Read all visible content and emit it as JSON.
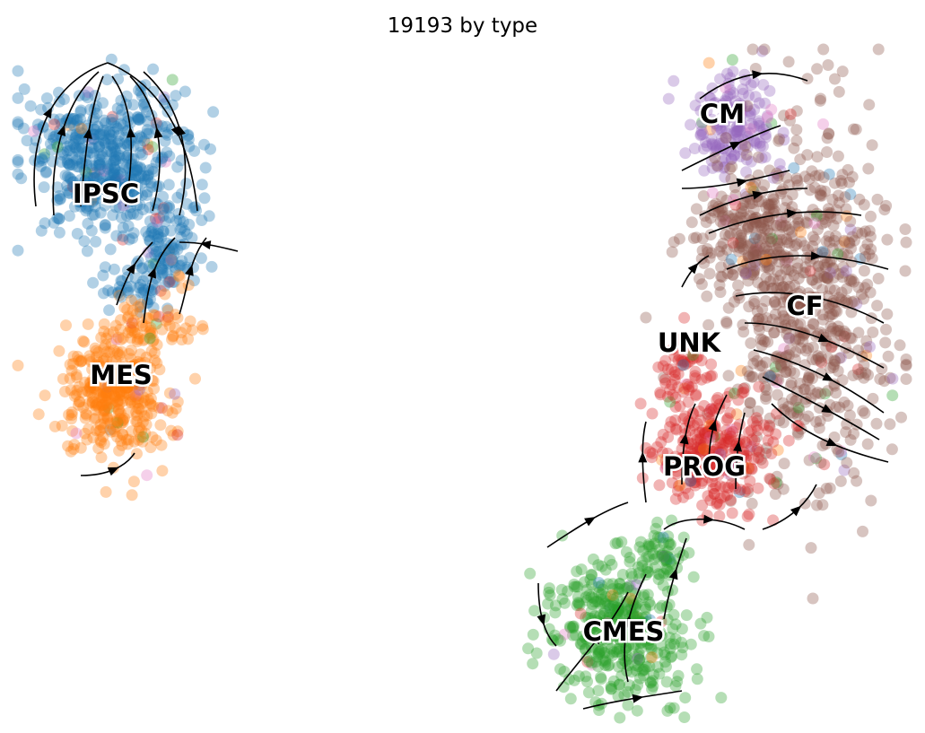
{
  "chart_data": {
    "type": "scatter",
    "title": "19193 by type",
    "xlabel": "",
    "ylabel": "",
    "grid": false,
    "axes_visible": false,
    "overlay": "velocity streamlines with arrowheads",
    "clusters": [
      {
        "name": "IPSC",
        "color": "#1f77b4"
      },
      {
        "name": "MES",
        "color": "#ff7f0e"
      },
      {
        "name": "CM",
        "color": "#9467bd"
      },
      {
        "name": "CF",
        "color": "#8c564b"
      },
      {
        "name": "UNK",
        "color": "#8c564b"
      },
      {
        "name": "PROG",
        "color": "#d62728"
      },
      {
        "name": "CMES",
        "color": "#2ca02c"
      }
    ]
  }
}
